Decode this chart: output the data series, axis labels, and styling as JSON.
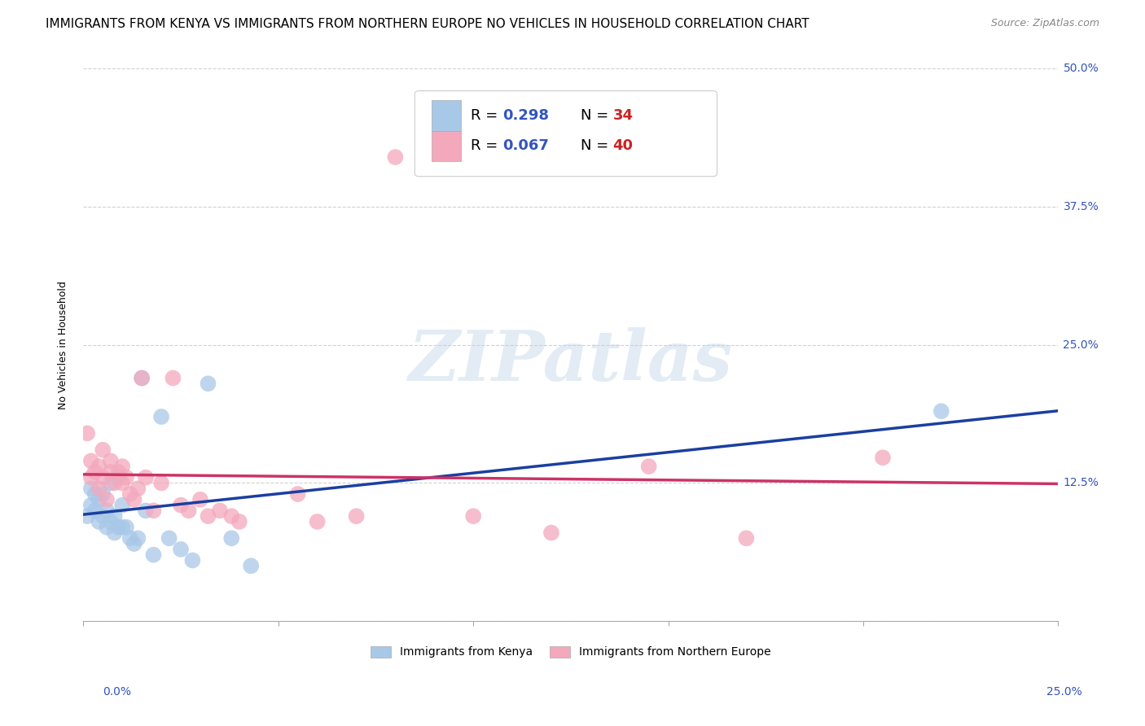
{
  "title": "IMMIGRANTS FROM KENYA VS IMMIGRANTS FROM NORTHERN EUROPE NO VEHICLES IN HOUSEHOLD CORRELATION CHART",
  "source": "Source: ZipAtlas.com",
  "ylabel": "No Vehicles in Household",
  "xlabel_bottom_left": "0.0%",
  "xlabel_bottom_right": "25.0%",
  "xlim": [
    0.0,
    0.25
  ],
  "ylim": [
    0.0,
    0.5
  ],
  "yticks": [
    0.0,
    0.125,
    0.25,
    0.375,
    0.5
  ],
  "ytick_labels_right": [
    "",
    "12.5%",
    "25.0%",
    "37.5%",
    "50.0%"
  ],
  "grid_color": "#cccccc",
  "background_color": "#ffffff",
  "watermark_text": "ZIPatlas",
  "series": [
    {
      "name": "Immigrants from Kenya",
      "color": "#a8c8e8",
      "line_color": "#1a3fa0",
      "R": 0.298,
      "N": 34,
      "points_x": [
        0.001,
        0.002,
        0.002,
        0.003,
        0.003,
        0.004,
        0.004,
        0.005,
        0.005,
        0.006,
        0.006,
        0.007,
        0.007,
        0.008,
        0.008,
        0.009,
        0.009,
        0.01,
        0.01,
        0.011,
        0.012,
        0.013,
        0.014,
        0.015,
        0.016,
        0.018,
        0.02,
        0.022,
        0.025,
        0.028,
        0.032,
        0.038,
        0.043,
        0.22
      ],
      "points_y": [
        0.095,
        0.105,
        0.12,
        0.1,
        0.115,
        0.09,
        0.11,
        0.095,
        0.115,
        0.085,
        0.1,
        0.09,
        0.125,
        0.095,
        0.08,
        0.085,
        0.13,
        0.105,
        0.085,
        0.085,
        0.075,
        0.07,
        0.075,
        0.22,
        0.1,
        0.06,
        0.185,
        0.075,
        0.065,
        0.055,
        0.215,
        0.075,
        0.05,
        0.19
      ]
    },
    {
      "name": "Immigrants from Northern Europe",
      "color": "#f4a8bc",
      "line_color": "#cc3366",
      "R": 0.067,
      "N": 40,
      "points_x": [
        0.001,
        0.002,
        0.002,
        0.003,
        0.004,
        0.004,
        0.005,
        0.005,
        0.006,
        0.007,
        0.007,
        0.008,
        0.009,
        0.01,
        0.01,
        0.011,
        0.012,
        0.013,
        0.014,
        0.015,
        0.016,
        0.018,
        0.02,
        0.023,
        0.025,
        0.027,
        0.03,
        0.032,
        0.035,
        0.038,
        0.04,
        0.055,
        0.06,
        0.07,
        0.08,
        0.1,
        0.12,
        0.145,
        0.17,
        0.205
      ],
      "points_y": [
        0.17,
        0.13,
        0.145,
        0.135,
        0.12,
        0.14,
        0.13,
        0.155,
        0.11,
        0.135,
        0.145,
        0.125,
        0.135,
        0.125,
        0.14,
        0.13,
        0.115,
        0.11,
        0.12,
        0.22,
        0.13,
        0.1,
        0.125,
        0.22,
        0.105,
        0.1,
        0.11,
        0.095,
        0.1,
        0.095,
        0.09,
        0.115,
        0.09,
        0.095,
        0.42,
        0.095,
        0.08,
        0.14,
        0.075,
        0.148
      ]
    }
  ],
  "legend_text_color": "#3355bb",
  "legend_N_color": "#cc2222",
  "title_fontsize": 11,
  "source_fontsize": 9,
  "axis_ylabel_fontsize": 9,
  "tick_fontsize": 10,
  "legend_fontsize": 13
}
